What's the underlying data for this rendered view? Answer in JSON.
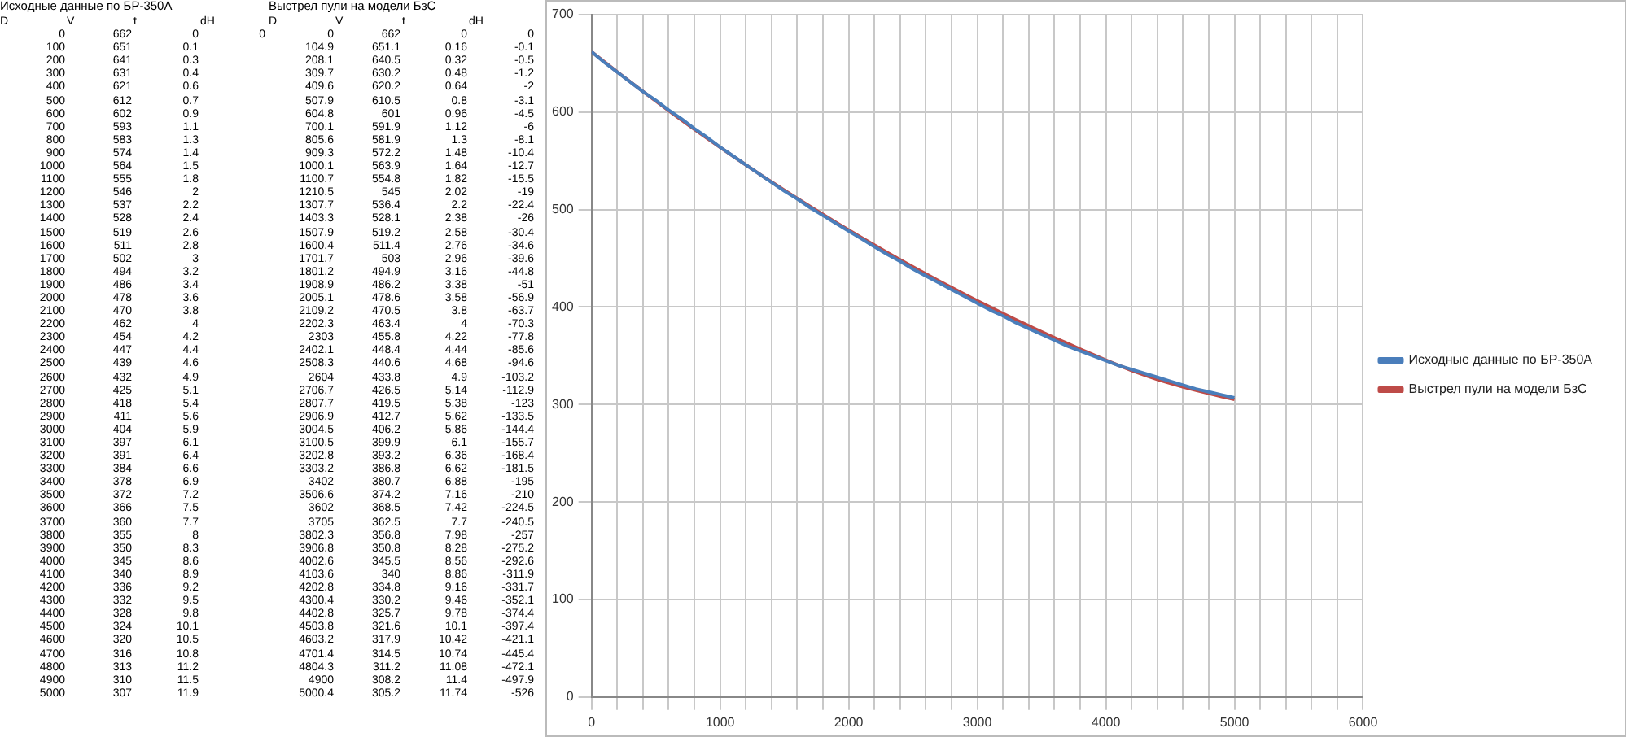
{
  "chart_data": {
    "type": "line",
    "legend": "right",
    "grid": true,
    "marker": "none",
    "line_style": "solid",
    "xlim": [
      0,
      6000
    ],
    "xticks": [
      0,
      {
        "value": 200,
        "label": null
      },
      {
        "value": 400,
        "label": null
      },
      {
        "value": 600,
        "label": null
      },
      {
        "value": 800,
        "label": null
      },
      1000,
      {
        "value": 1200,
        "label": null
      },
      {
        "value": 1400,
        "label": null
      },
      {
        "value": 1600,
        "label": null
      },
      {
        "value": 1800,
        "label": null
      },
      2000,
      {
        "value": 2200,
        "label": null
      },
      {
        "value": 2400,
        "label": null
      },
      {
        "value": 2600,
        "label": null
      },
      {
        "value": 2800,
        "label": null
      },
      3000,
      {
        "value": 3200,
        "label": null
      },
      {
        "value": 3400,
        "label": null
      },
      {
        "value": 3600,
        "label": null
      },
      {
        "value": 3800,
        "label": null
      },
      4000,
      {
        "value": 4200,
        "label": null
      },
      {
        "value": 4400,
        "label": null
      },
      {
        "value": 4600,
        "label": null
      },
      {
        "value": 4800,
        "label": null
      },
      5000,
      {
        "value": 5200,
        "label": null
      },
      {
        "value": 5400,
        "label": null
      },
      {
        "value": 5600,
        "label": null
      },
      {
        "value": 5800,
        "label": null
      },
      6000
    ],
    "ylim": [
      0,
      700
    ],
    "yticks": [
      0,
      100,
      200,
      300,
      400,
      500,
      600,
      700
    ],
    "series": [
      {
        "name": "Исходные данные по БР-350А",
        "color": "#4a7ebb",
        "x": [
          0,
          100,
          200,
          300,
          400,
          500,
          600,
          700,
          800,
          900,
          1000,
          1100,
          1200,
          1300,
          1400,
          1500,
          1600,
          1700,
          1800,
          1900,
          2000,
          2100,
          2200,
          2300,
          2400,
          2500,
          2600,
          2700,
          2800,
          2900,
          3000,
          3100,
          3200,
          3300,
          3400,
          3500,
          3600,
          3700,
          3800,
          3900,
          4000,
          4100,
          4200,
          4300,
          4400,
          4500,
          4600,
          4700,
          4800,
          4900,
          5000
        ],
        "values": [
          662,
          651,
          641,
          631,
          621,
          612,
          602,
          593,
          583,
          574,
          564,
          555,
          546,
          537,
          528,
          519,
          511,
          502,
          494,
          486,
          478,
          470,
          462,
          454,
          447,
          439,
          432,
          425,
          418,
          411,
          404,
          397,
          391,
          384,
          378,
          372,
          366,
          360,
          355,
          350,
          345,
          340,
          336,
          332,
          328,
          324,
          320,
          316,
          313,
          310,
          307
        ]
      },
      {
        "name": "Выстрел пули на модели БзС",
        "color": "#be4b48",
        "x": [
          0,
          104.9,
          208.1,
          309.7,
          409.6,
          507.9,
          604.8,
          700.1,
          805.6,
          909.3,
          1000.1,
          1100.7,
          1210.5,
          1307.7,
          1403.3,
          1507.9,
          1600.4,
          1701.7,
          1801.2,
          1908.9,
          2005.1,
          2109.2,
          2202.3,
          2303,
          2402.1,
          2508.3,
          2604,
          2706.7,
          2807.7,
          2906.9,
          3004.5,
          3100.5,
          3202.8,
          3303.2,
          3402,
          3506.6,
          3602,
          3705,
          3802.3,
          3906.8,
          4002.6,
          4103.6,
          4202.8,
          4300.4,
          4402.8,
          4503.8,
          4603.2,
          4701.4,
          4804.3,
          4900,
          5000.4
        ],
        "values": [
          662,
          651.1,
          640.5,
          630.2,
          620.2,
          610.5,
          601,
          591.9,
          581.9,
          572.2,
          563.9,
          554.8,
          545,
          536.4,
          528.1,
          519.2,
          511.4,
          503,
          494.9,
          486.2,
          478.6,
          470.5,
          463.4,
          455.8,
          448.4,
          440.6,
          433.8,
          426.5,
          419.5,
          412.7,
          406.2,
          399.9,
          393.2,
          386.8,
          380.7,
          374.2,
          368.5,
          362.5,
          356.8,
          350.8,
          345.5,
          340,
          334.8,
          330.2,
          325.7,
          321.6,
          317.9,
          314.5,
          311.2,
          308.2,
          305.2
        ]
      }
    ],
    "annotations": [
      "Исходные данные по БР-350А",
      "D\tV\tt\tdH",
      "0\t662\t0\t0",
      "100\t651\t0.1",
      "200\t641\t0.3",
      "300\t631\t0.4",
      "400\t621\t0.6",
      "500\t612\t0.7",
      "600\t602\t0.9",
      "700\t593\t1.1",
      "800\t583\t1.3",
      "900\t574\t1.4",
      "1000\t564\t1.5",
      "1100\t555\t1.8",
      "1200\t546\t2",
      "1300\t537\t2.2",
      "1400\t528\t2.4",
      "1500\t519\t2.6",
      "1600\t511\t2.8",
      "1700\t502\t3",
      "1800\t494\t3.2",
      "1900\t486\t3.4",
      "2000\t478\t3.6",
      "2100\t470\t3.8",
      "2200\t462\t4",
      "2300\t454\t4.2",
      "2400\t447\t4.4",
      "2500\t439\t4.6",
      "2600\t432\t4.9",
      "2700\t425\t5.1",
      "2800\t418\t5.4",
      "2900\t411\t5.6",
      "3000\t404\t5.9",
      "3100\t397\t6.1",
      "3200\t391\t6.4",
      "3300\t384\t6.6",
      "3400\t378\t6.9",
      "3500\t372\t7.2",
      "3600\t366\t7.5",
      "3700\t360\t7.7",
      "3800\t355\t8",
      "3900\t350\t8.3",
      "4000\t345\t8.6",
      "4100\t340\t8.9",
      "4200\t336\t9.2",
      "4300\t332\t9.5",
      "4400\t328\t9.8",
      "4500\t324\t10.1",
      "4600\t320\t10.5",
      "4700\t316\t10.8",
      "4800\t313\t11.2",
      "4900\t310\t11.5",
      "5000\t307\t11.9",
      "Выстрел пули на модели БзС",
      "D\tV\tt\tdH",
      "0\t662\t0\t0",
      "104.9\t651.1\t0.16\t-0.1",
      "208.1\t640.5\t0.32\t-0.5",
      "309.7\t630.2\t0.48\t-1.2",
      "409.6\t620.2\t0.64\t-2",
      "507.9\t610.5\t0.8\t-3.1",
      "604.8\t601\t0.96\t-4.5",
      "700.1\t591.9\t1.12\t-6",
      "805.6\t581.9\t1.3\t-8.1",
      "909.3\t572.2\t1.48\t-10.4",
      "1000.1\t563.9\t1.64\t-12.7",
      "1100.7\t554.8\t1.82\t-15.5",
      "1210.5\t545\t2.02\t-19",
      "1307.7\t536.4\t2.2\t-22.4",
      "1403.3\t528.1\t2.38\t-26",
      "1507.9\t519.2\t2.58\t-30.4",
      "1600.4\t511.4\t2.76\t-34.6",
      "1701.7\t503\t2.96\t-39.6",
      "1801.2\t494.9\t3.16\t-44.8",
      "1908.9\t486.2\t3.38\t-51",
      "2005.1\t478.6\t3.58\t-56.9",
      "2109.2\t470.5\t3.8\t-63.7",
      "2202.3\t463.4\t4\t-70.3",
      "2303\t455.8\t4.22\t-77.8",
      "2402.1\t448.4\t4.44\t-85.6",
      "2508.3\t440.6\t4.68\t-94.6",
      "2604\t433.8\t4.9\t-103.2",
      "2706.7\t426.5\t5.14\t-112.9",
      "2807.7\t419.5\t5.38\t-123",
      "2906.9\t412.7\t5.62\t-133.5",
      "3004.5\t406.2\t5.86\t-144.4",
      "3100.5\t399.9\t6.1\t-155.7",
      "3202.8\t393.2\t6.36\t-168.4",
      "3303.2\t386.8\t6.62\t-181.5",
      "3402\t380.7\t6.88\t-195",
      "3506.6\t374.2\t7.16\t-210",
      "3602\t368.5\t7.42\t-224.5",
      "3705\t362.5\t7.7\t-240.5",
      "3802.3\t356.8\t7.98\t-257",
      "3906.8\t350.8\t8.28\t-275.2",
      "4002.6\t345.5\t8.56\t-292.6",
      "4103.6\t340\t8.86\t-311.9",
      "4202.8\t334.8\t9.16\t-331.7",
      "4300.4\t330.2\t9.46\t-352.1",
      "4402.8\t325.7\t9.78\t-374.4",
      "4503.8\t321.6\t10.1\t-397.4",
      "4603.2\t317.9\t10.42\t-421.1",
      "4701.4\t314.5\t10.74\t-445.4",
      "4804.3\t311.2\t11.08\t-472.1",
      "4900\t308.2\t11.4\t-497.9",
      "5000.4\t305.2\t11.74\t-526"
    ]
  }
}
